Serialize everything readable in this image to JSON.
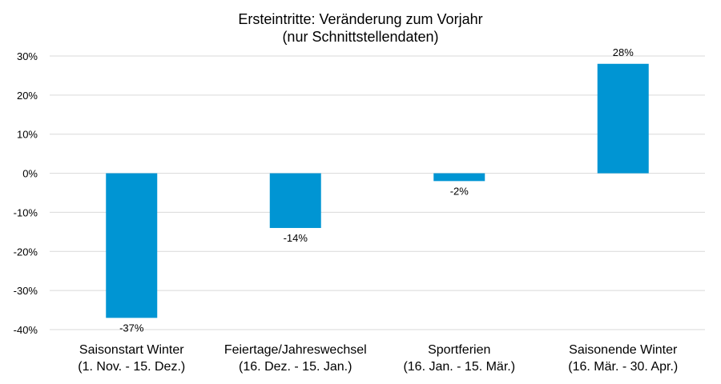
{
  "chart_data": {
    "type": "bar",
    "title_lines": [
      "Ersteintritte: Veränderung zum Vorjahr",
      "(nur Schnittstellendaten)"
    ],
    "categories": [
      [
        "Saisonstart Winter",
        "(1. Nov. - 15. Dez.)"
      ],
      [
        "Feiertage/Jahreswechsel",
        "(16. Dez. - 15. Jan.)"
      ],
      [
        "Sportferien",
        "(16. Jan. - 15. Mär.)"
      ],
      [
        "Saisonende Winter",
        "(16. Mär. - 30. Apr.)"
      ]
    ],
    "values": [
      -37,
      -14,
      -2,
      28
    ],
    "data_labels": [
      "-37%",
      "-14%",
      "-2%",
      "28%"
    ],
    "yticks": [
      30,
      20,
      10,
      0,
      -10,
      -20,
      -30,
      -40
    ],
    "ytick_labels": [
      "30%",
      "20%",
      "10%",
      "0%",
      "-10%",
      "-20%",
      "-30%",
      "-40%"
    ],
    "ylim": [
      -40,
      30
    ],
    "grid": true,
    "bar_color": "#0095d3",
    "xlabel": "",
    "ylabel": ""
  }
}
